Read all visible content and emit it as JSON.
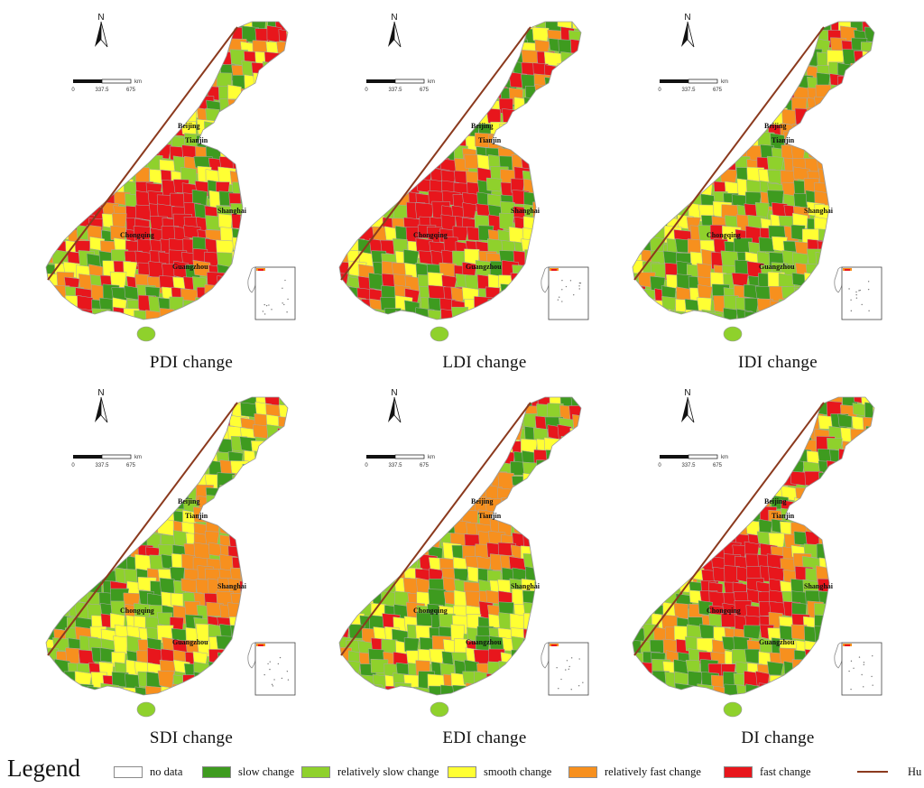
{
  "maps": [
    {
      "title": "PDI change",
      "seed": 11,
      "weights": [
        0.18,
        0.18,
        0.2,
        0.2,
        0.24
      ],
      "cluster": [
        0.45,
        0.68,
        4
      ]
    },
    {
      "title": "LDI change",
      "seed": 23,
      "weights": [
        0.2,
        0.18,
        0.2,
        0.18,
        0.24
      ],
      "cluster": [
        0.4,
        0.62,
        4
      ]
    },
    {
      "title": "IDI change",
      "seed": 37,
      "weights": [
        0.24,
        0.26,
        0.2,
        0.18,
        0.12
      ],
      "cluster": [
        0.72,
        0.4,
        4
      ]
    },
    {
      "title": "SDI change",
      "seed": 41,
      "weights": [
        0.26,
        0.26,
        0.22,
        0.14,
        0.12
      ],
      "cluster": [
        0.7,
        0.55,
        4
      ]
    },
    {
      "title": "EDI change",
      "seed": 53,
      "weights": [
        0.26,
        0.26,
        0.22,
        0.14,
        0.12
      ],
      "cluster": [
        0.6,
        0.42,
        4
      ]
    },
    {
      "title": "DI change",
      "seed": 67,
      "weights": [
        0.16,
        0.18,
        0.22,
        0.24,
        0.2
      ],
      "cluster": [
        0.42,
        0.6,
        4
      ]
    }
  ],
  "cities": [
    "Beijing",
    "Tianjin",
    "Shanghai",
    "Chongqing",
    "Guangzhou"
  ],
  "north_label": "N",
  "scale": {
    "ticks": [
      "0",
      "337.5",
      "675"
    ],
    "unit": "km"
  },
  "legend": {
    "title": "Legend",
    "items": [
      {
        "label": "no data",
        "color": "#ffffff"
      },
      {
        "label": "slow change",
        "color": "#3e9b1f"
      },
      {
        "label": "relatively slow change",
        "color": "#8fd12c"
      },
      {
        "label": "smooth change",
        "color": "#ffff33"
      },
      {
        "label": "relatively fast change",
        "color": "#f7901e"
      },
      {
        "label": "fast change",
        "color": "#e8161c"
      }
    ],
    "hu_line": {
      "label": "Hu Line",
      "color": "#8b3a1e"
    }
  }
}
